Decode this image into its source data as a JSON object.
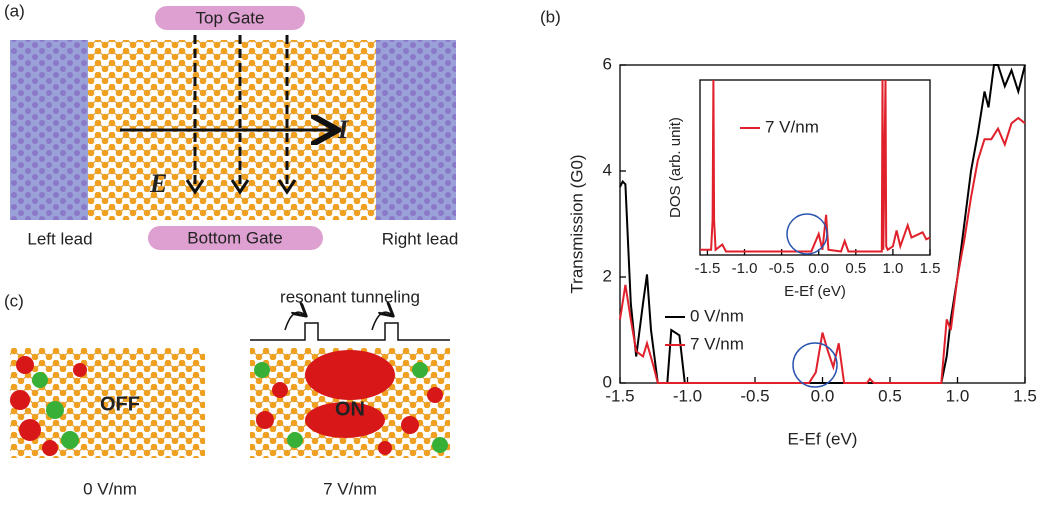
{
  "panels": {
    "a": {
      "label": "(a)",
      "top_gate": "Top Gate",
      "bottom_gate": "Bottom Gate",
      "left_lead": "Left lead",
      "right_lead": "Right lead",
      "current": "I",
      "field": "E"
    },
    "b": {
      "label": "(b)"
    },
    "c": {
      "label": "(c)",
      "mechanism": "resonant tunneling",
      "off": "OFF",
      "on": "ON",
      "off_field": "0 V/nm",
      "on_field": "7 V/nm"
    }
  },
  "chart_data": [
    {
      "type": "line",
      "x_label": "E-Ef (eV)",
      "y_label": "Transmission (G0)",
      "xlim": [
        -1.5,
        1.5
      ],
      "ylim": [
        0,
        6
      ],
      "xticks": [
        -1.5,
        {
          "value": -1.0,
          "label": "-1.0"
        },
        -0.5,
        {
          "value": 0.0,
          "label": "0.0"
        },
        0.5,
        {
          "value": 1.0,
          "label": "1.0"
        },
        1.5
      ],
      "yticks": [
        0,
        2,
        4,
        6
      ],
      "series": [
        {
          "name": "0 V/nm",
          "color": "#000000",
          "x": [
            -1.5,
            -1.48,
            -1.46,
            -1.42,
            -1.38,
            -1.33,
            -1.3,
            -1.27,
            -1.22,
            -1.15,
            -1.12,
            -1.06,
            -1.02,
            0.88,
            0.92,
            0.95,
            1.0,
            1.05,
            1.1,
            1.15,
            1.2,
            1.23,
            1.27,
            1.3,
            1.35,
            1.4,
            1.45,
            1.5
          ],
          "values": [
            3.7,
            3.8,
            3.75,
            1.5,
            0.5,
            1.5,
            2.05,
            1.0,
            0,
            0,
            1.0,
            0.9,
            0,
            0,
            0.5,
            1.2,
            2.0,
            3.0,
            4.0,
            4.7,
            5.5,
            5.2,
            6.0,
            6.0,
            5.6,
            5.9,
            5.5,
            6.0
          ]
        },
        {
          "name": "7 V/nm",
          "color": "#e0202a",
          "x": [
            -1.5,
            -1.46,
            -1.42,
            -1.38,
            -1.33,
            -1.3,
            -1.25,
            -1.22,
            -0.1,
            -0.05,
            0.0,
            0.04,
            0.08,
            0.12,
            0.16,
            0.33,
            0.35,
            0.38,
            0.88,
            0.92,
            0.95,
            1.0,
            1.05,
            1.1,
            1.15,
            1.2,
            1.25,
            1.3,
            1.35,
            1.4,
            1.45,
            1.5
          ],
          "values": [
            1.2,
            1.85,
            1.2,
            0.6,
            0.5,
            0.75,
            0.3,
            0,
            0,
            0.2,
            0.95,
            0.6,
            0.3,
            0.75,
            0,
            0,
            0.08,
            0,
            0,
            1.2,
            1.0,
            2.0,
            2.7,
            3.5,
            4.2,
            4.6,
            4.6,
            4.8,
            4.5,
            4.9,
            5.0,
            4.9
          ]
        }
      ]
    },
    {
      "type": "line",
      "x_label": "E-Ef (eV)",
      "y_label": "DOS (arb. unit)",
      "xlim": [
        -1.6,
        1.5
      ],
      "ylim": [
        0,
        10
      ],
      "xticks": [
        -1.5,
        {
          "value": -1.0,
          "label": "-1.0"
        },
        -0.5,
        {
          "value": 0.0,
          "label": "0.0"
        },
        0.5,
        {
          "value": 1.0,
          "label": "1.0"
        },
        1.5
      ],
      "series": [
        {
          "name": "7 V/nm",
          "color": "#e0202a",
          "x": [
            -1.6,
            -1.45,
            -1.43,
            -1.42,
            -1.41,
            -1.39,
            -1.3,
            -1.25,
            -1.0,
            -0.5,
            -0.1,
            0.0,
            0.05,
            0.1,
            0.13,
            0.3,
            0.35,
            0.4,
            0.85,
            0.86,
            0.87,
            0.9,
            0.91,
            0.93,
            1.0,
            1.05,
            1.1,
            1.2,
            1.25,
            1.3,
            1.4,
            1.45,
            1.5
          ],
          "values": [
            0.3,
            0.3,
            2.0,
            10,
            2.0,
            0.3,
            0.6,
            0.2,
            0.2,
            0.2,
            0.2,
            1.2,
            0.3,
            2.3,
            0.3,
            0.2,
            0.8,
            0.2,
            0.2,
            10,
            0.3,
            10,
            0.5,
            0.3,
            0.5,
            1.4,
            0.5,
            1.7,
            1.0,
            1.1,
            1.3,
            0.9,
            1.0
          ]
        }
      ]
    }
  ]
}
